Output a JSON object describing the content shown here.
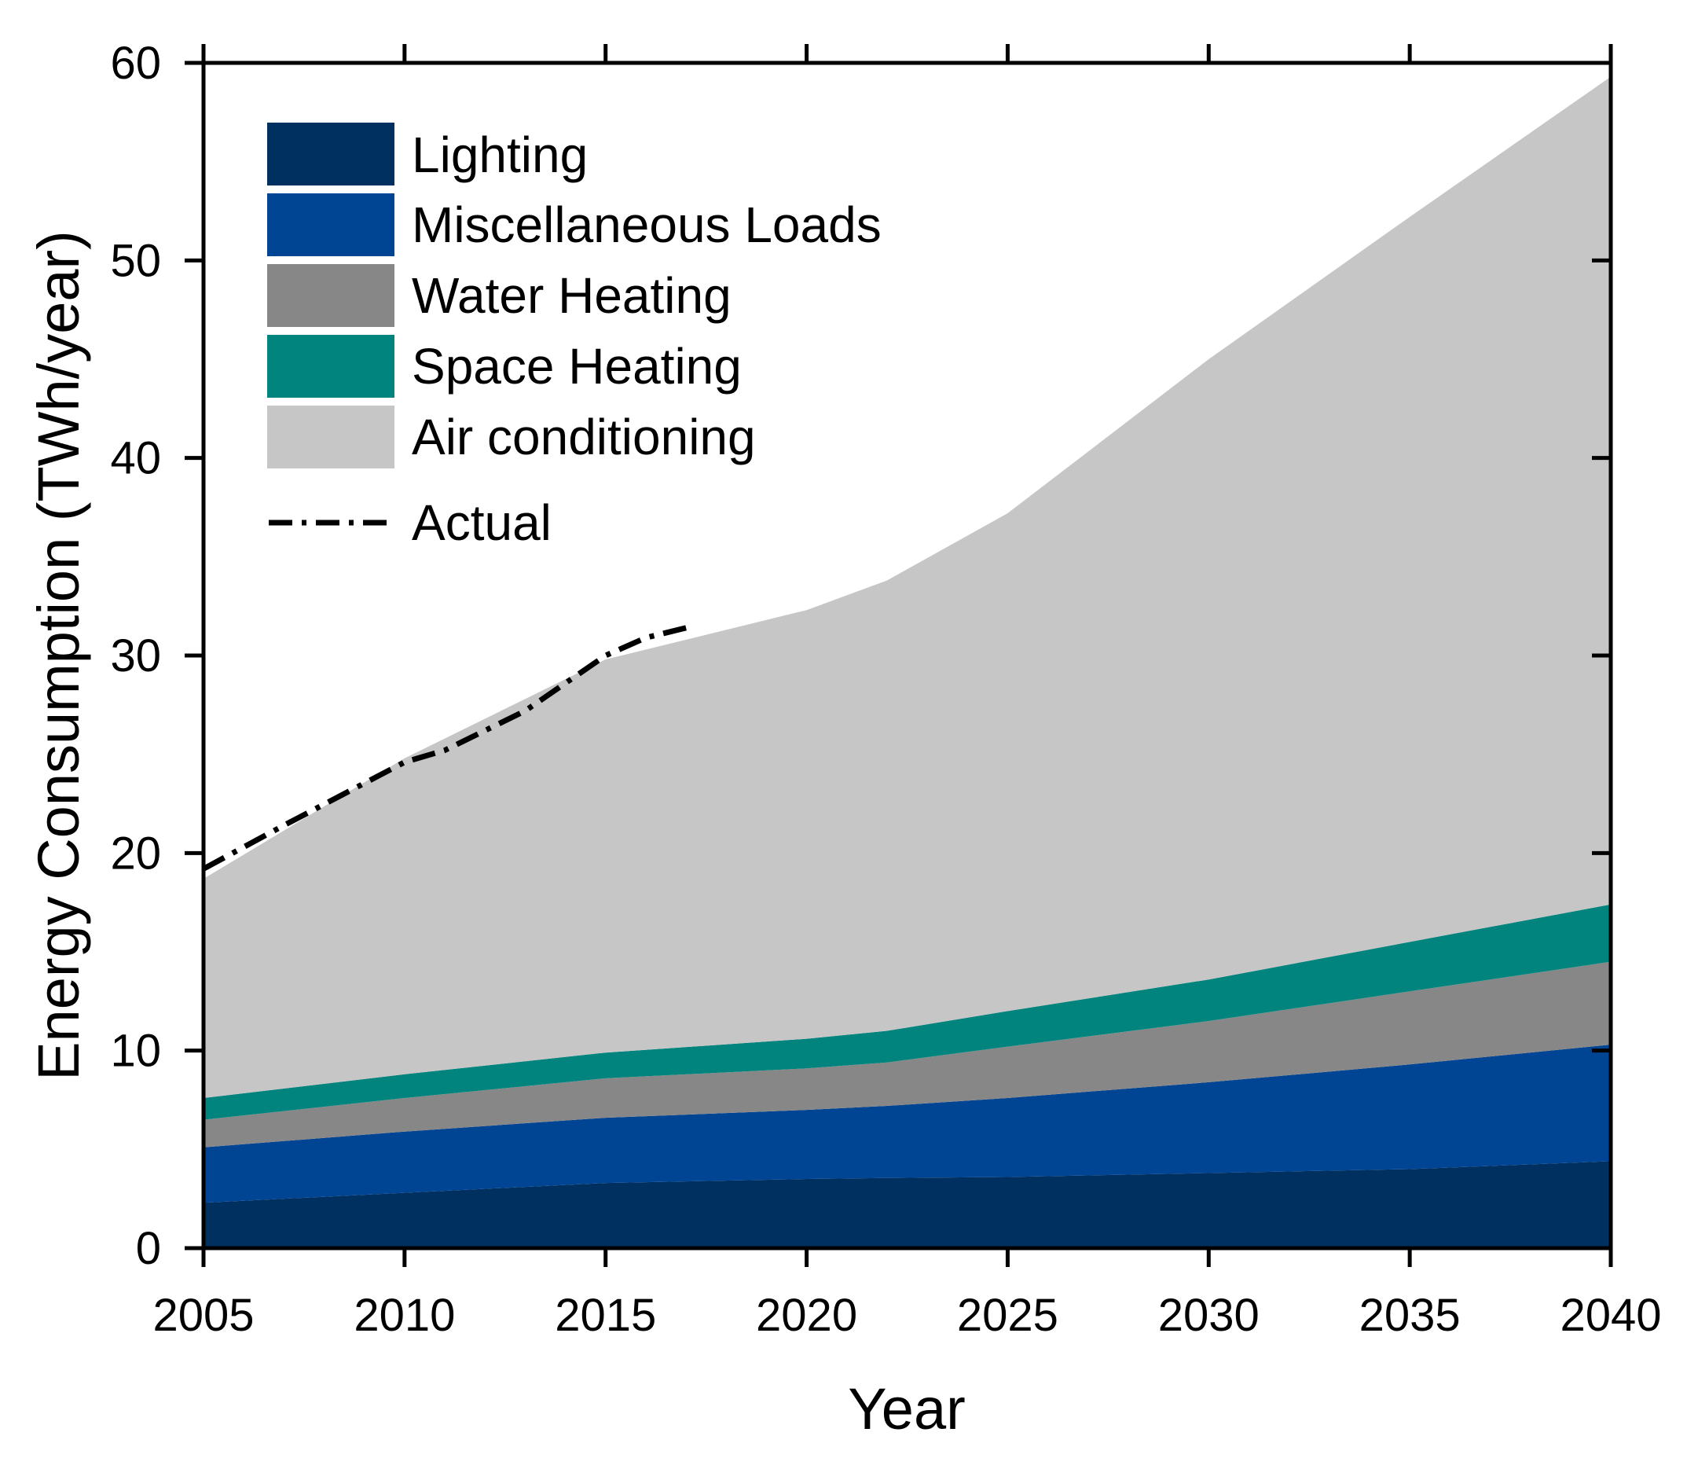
{
  "chart_data": {
    "type": "area",
    "stacked": true,
    "title": "",
    "xlabel": "Year",
    "ylabel": "Energy Consumption (TWh/year)",
    "xlim": [
      2005,
      2040
    ],
    "ylim": [
      0,
      60
    ],
    "xticks": [
      2005,
      2010,
      2015,
      2020,
      2025,
      2030,
      2035,
      2040
    ],
    "yticks": [
      0,
      10,
      20,
      30,
      40,
      50,
      60
    ],
    "x": [
      2005,
      2010,
      2015,
      2020,
      2022,
      2025,
      2030,
      2035,
      2040
    ],
    "series": [
      {
        "name": "Lighting",
        "color": "#00305f",
        "values": [
          2.3,
          2.8,
          3.3,
          3.5,
          3.55,
          3.6,
          3.8,
          4.0,
          4.4
        ]
      },
      {
        "name": "Miscellaneous Loads",
        "color": "#004494",
        "values": [
          2.8,
          3.1,
          3.3,
          3.5,
          3.65,
          4.0,
          4.6,
          5.3,
          5.9
        ]
      },
      {
        "name": "Water Heating",
        "color": "#878787",
        "values": [
          1.4,
          1.7,
          2.0,
          2.1,
          2.2,
          2.6,
          3.1,
          3.7,
          4.2
        ]
      },
      {
        "name": "Space Heating",
        "color": "#00847d",
        "values": [
          1.1,
          1.2,
          1.3,
          1.5,
          1.6,
          1.8,
          2.1,
          2.5,
          2.9
        ]
      },
      {
        "name": "Air conditioning",
        "color": "#c6c6c6",
        "values": [
          11.1,
          16.0,
          19.9,
          21.7,
          22.8,
          25.2,
          31.4,
          36.7,
          41.9
        ]
      }
    ],
    "actual": {
      "name": "Actual",
      "color": "#000000",
      "x": [
        2005,
        2007,
        2010,
        2011,
        2013,
        2015,
        2016,
        2017
      ],
      "values": [
        19.2,
        21.4,
        24.6,
        25.2,
        27.2,
        30.0,
        30.9,
        31.4
      ]
    },
    "legend_position": "top-left"
  }
}
